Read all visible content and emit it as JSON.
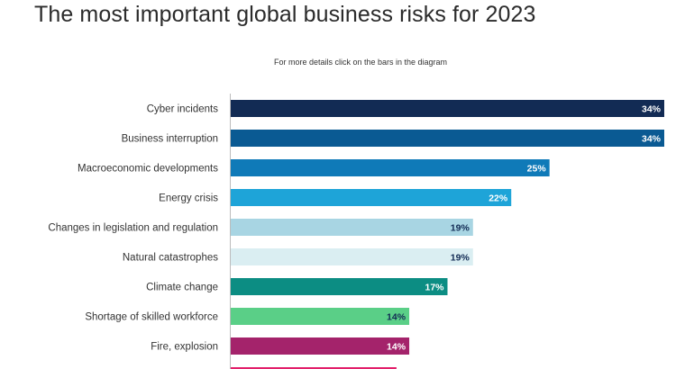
{
  "page": {
    "title": "The most important global business risks for 2023",
    "instruction": "For more details click on the bars in the diagram"
  },
  "chart_data": {
    "type": "bar",
    "orientation": "horizontal",
    "title": "The most important global business risks for 2023",
    "xlabel": "",
    "ylabel": "",
    "xlim": [
      0,
      34
    ],
    "grid": false,
    "value_suffix": "%",
    "categories": [
      "Cyber incidents",
      "Business interruption",
      "Macroeconomic developments",
      "Energy crisis",
      "Changes in legislation and regulation",
      "Natural catastrophes",
      "Climate change",
      "Shortage of skilled workforce",
      "Fire, explosion",
      ""
    ],
    "values": [
      34,
      34,
      25,
      22,
      19,
      19,
      17,
      14,
      14,
      13
    ],
    "value_labels": [
      "34%",
      "34%",
      "25%",
      "22%",
      "19%",
      "19%",
      "17%",
      "14%",
      "14%",
      ""
    ],
    "colors": [
      "#122b54",
      "#0a5a93",
      "#0f7ab8",
      "#1ea4d8",
      "#a8d5e3",
      "#daeef2",
      "#0c8d83",
      "#5acf87",
      "#a4236b",
      "#e21f6a"
    ],
    "label_colors": [
      "#ffffff",
      "#ffffff",
      "#ffffff",
      "#ffffff",
      "#122b54",
      "#122b54",
      "#ffffff",
      "#122b54",
      "#ffffff",
      "#ffffff"
    ],
    "axis_color": "#bcbcbc"
  }
}
